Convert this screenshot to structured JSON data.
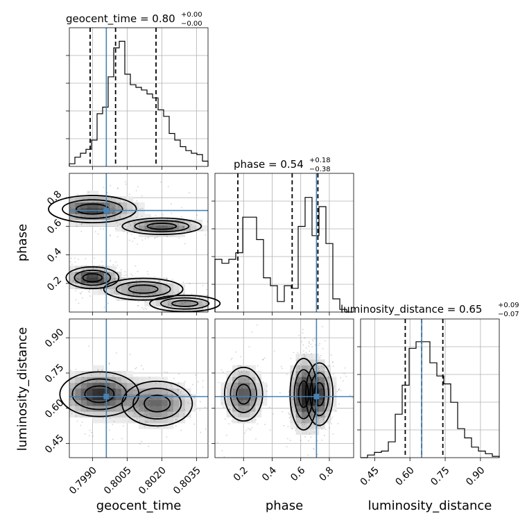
{
  "colors": {
    "truth": "#4682b4",
    "ink": "#000000",
    "grid": "#b0b0b0"
  },
  "chart_data": {
    "type": "corner",
    "parameters": [
      "geocent_time",
      "phase",
      "luminosity_distance"
    ],
    "truths": {
      "geocent_time": 0.7996,
      "phase": 0.71,
      "luminosity_distance": 0.65
    },
    "ranges": {
      "geocent_time": [
        0.798,
        0.804
      ],
      "phase": [
        0.0,
        0.97
      ],
      "luminosity_distance": [
        0.39,
        0.98
      ]
    },
    "ticks": {
      "geocent_time": {
        "values": [
          0.799,
          0.8005,
          0.802,
          0.8035
        ],
        "labels": [
          "0.7990",
          "0.8005",
          "0.8020",
          "0.8035"
        ]
      },
      "phase": {
        "values": [
          0.2,
          0.4,
          0.6,
          0.8
        ],
        "labels": [
          "0.2",
          "0.4",
          "0.6",
          "0.8"
        ]
      },
      "luminosity_distance": {
        "values": [
          0.45,
          0.6,
          0.75,
          0.9
        ],
        "labels": [
          "0.45",
          "0.60",
          "0.75",
          "0.90"
        ]
      }
    },
    "grid": true,
    "titles": [
      {
        "param": "geocent_time",
        "label": "geocent_time = 0.80",
        "plus": "+0.00",
        "minus": "−0.00"
      },
      {
        "param": "phase",
        "label": "phase = 0.54",
        "plus": "+0.18",
        "minus": "−0.38"
      },
      {
        "param": "luminosity_distance",
        "label": "luminosity_distance = 0.65",
        "plus": "+0.09",
        "minus": "−0.07"
      }
    ],
    "quantiles": {
      "geocent_time": [
        0.7989,
        0.8,
        0.80175
      ],
      "phase": [
        0.16,
        0.54,
        0.72
      ],
      "luminosity_distance": [
        0.58,
        0.65,
        0.74
      ]
    },
    "histograms": {
      "geocent_time": [
        0.02,
        0.07,
        0.1,
        0.13,
        0.2,
        0.4,
        0.45,
        0.68,
        0.9,
        0.95,
        0.7,
        0.62,
        0.6,
        0.58,
        0.55,
        0.52,
        0.43,
        0.38,
        0.25,
        0.2,
        0.15,
        0.12,
        0.1,
        0.09,
        0.04
      ],
      "phase": [
        0.4,
        0.37,
        0.4,
        0.45,
        0.72,
        0.72,
        0.55,
        0.26,
        0.2,
        0.08,
        0.2,
        0.18,
        0.65,
        0.87,
        0.58,
        0.8,
        0.52,
        0.1,
        0.02,
        0.0
      ],
      "luminosity_distance": [
        0.0,
        0.02,
        0.04,
        0.05,
        0.12,
        0.33,
        0.55,
        0.83,
        0.88,
        0.88,
        0.72,
        0.62,
        0.56,
        0.42,
        0.22,
        0.15,
        0.08,
        0.05,
        0.03,
        0.01
      ]
    },
    "density_clusters": {
      "phase_vs_geocent_time": [
        {
          "x": 0.799,
          "y": 0.72,
          "sx": 0.001,
          "sy": 0.05,
          "w": 0.9
        },
        {
          "x": 0.802,
          "y": 0.6,
          "sx": 0.0009,
          "sy": 0.03,
          "w": 0.8
        },
        {
          "x": 0.799,
          "y": 0.24,
          "sx": 0.0006,
          "sy": 0.04,
          "w": 1.0
        },
        {
          "x": 0.8012,
          "y": 0.16,
          "sx": 0.0009,
          "sy": 0.04,
          "w": 0.6
        },
        {
          "x": 0.803,
          "y": 0.06,
          "sx": 0.0008,
          "sy": 0.03,
          "w": 0.5
        }
      ],
      "luminosity_distance_vs_geocent_time": [
        {
          "x": 0.7993,
          "y": 0.66,
          "sx": 0.0009,
          "sy": 0.05,
          "w": 1.0
        },
        {
          "x": 0.8018,
          "y": 0.62,
          "sx": 0.0008,
          "sy": 0.05,
          "w": 0.7
        }
      ],
      "luminosity_distance_vs_phase": [
        {
          "x": 0.2,
          "y": 0.66,
          "sx": 0.07,
          "sy": 0.06,
          "w": 0.8
        },
        {
          "x": 0.62,
          "y": 0.66,
          "sx": 0.05,
          "sy": 0.08,
          "w": 1.0
        },
        {
          "x": 0.73,
          "y": 0.66,
          "sx": 0.05,
          "sy": 0.07,
          "w": 0.9
        }
      ]
    }
  }
}
